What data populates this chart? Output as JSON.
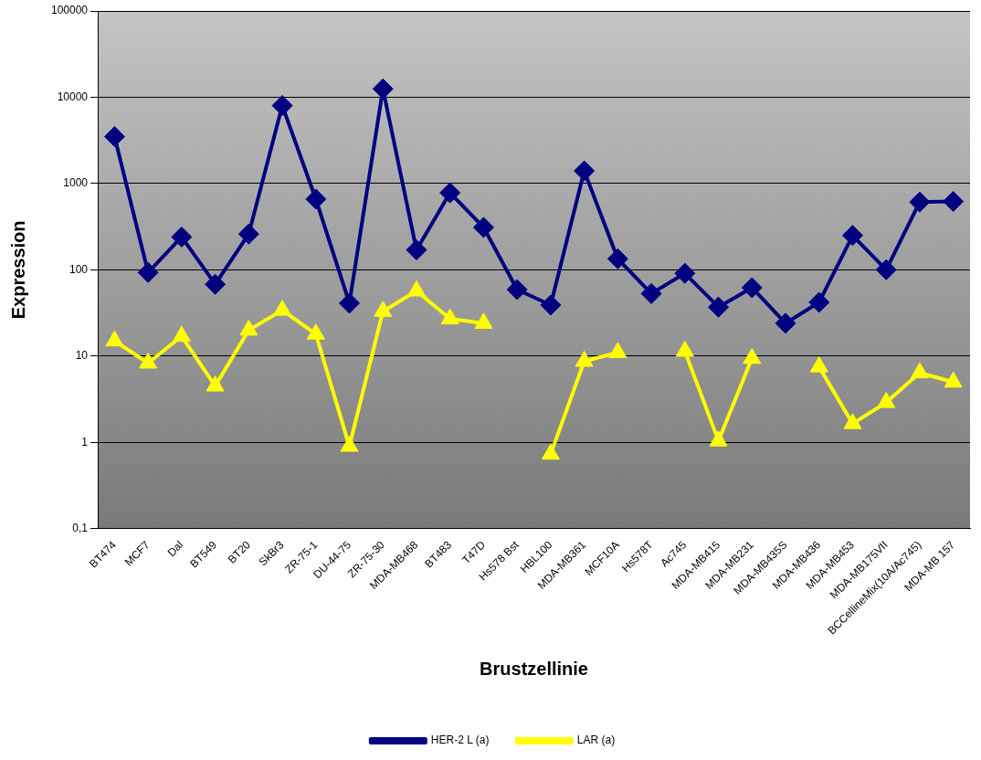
{
  "chart_data": {
    "type": "line",
    "xlabel": "Brustzellinie",
    "ylabel": "Expression",
    "categories": [
      "BT474",
      "MCF7",
      "Dal",
      "BT549",
      "BT20",
      "SkBr3",
      "ZR-75-1",
      "DU-44-75",
      "ZR-75-30",
      "MDA-MB468",
      "BT483",
      "T47D",
      "Hs578 Bst",
      "HBL100",
      "MDA-MB361",
      "MCF10A",
      "Hs578T",
      "Ac745",
      "MDA-MB415",
      "MDA-MB231",
      "MDA-MB435S",
      "MDA-MB436",
      "MDA-MB453",
      "MDA-MB175VII",
      "BCCellineMix(10A/Ac745)",
      "MDA-MB 157"
    ],
    "series": [
      {
        "name": "HER-2 L (a)",
        "color": "#000080",
        "marker": "diamond",
        "values": [
          3500,
          93,
          240,
          68,
          260,
          8000,
          660,
          41,
          12500,
          170,
          780,
          310,
          59,
          39,
          1400,
          134,
          53,
          91,
          37,
          62,
          24,
          42,
          250,
          100,
          610,
          620
        ]
      },
      {
        "name": "LAR (a)",
        "color": "#ffff00",
        "marker": "triangle",
        "values": [
          15,
          8.3,
          17,
          4.5,
          20,
          34,
          18,
          0.9,
          33,
          57,
          27,
          24,
          null,
          0.73,
          8.7,
          11,
          null,
          11.4,
          1.04,
          9.4,
          null,
          7.5,
          1.65,
          2.9,
          6.4,
          5
        ]
      }
    ],
    "log": "y",
    "ylim": [
      0.1,
      100000
    ],
    "yticks": [
      {
        "value": 0.1,
        "label": "0,1"
      },
      1,
      10,
      100,
      1000,
      10000,
      100000
    ],
    "grid": "y",
    "legend": "bottom"
  }
}
